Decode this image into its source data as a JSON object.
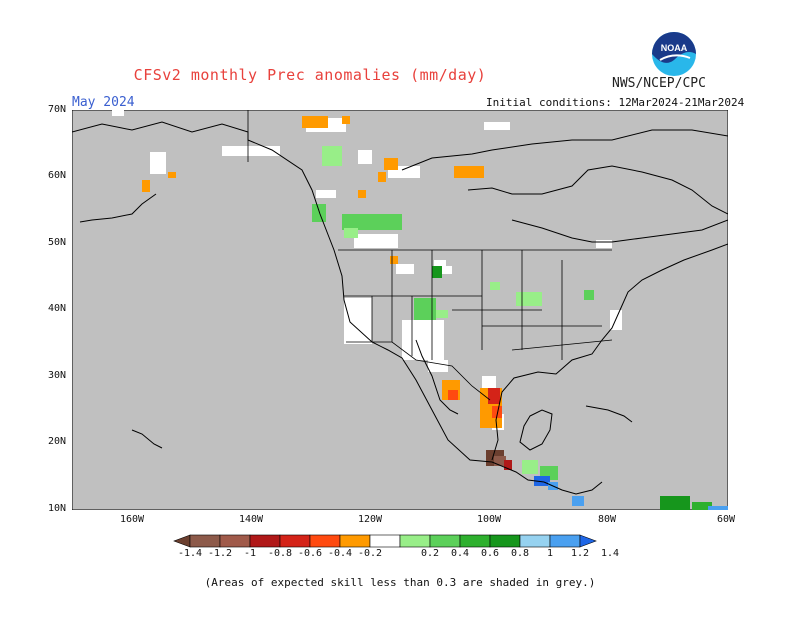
{
  "title": "CFSv2 monthly Prec anomalies (mm/day)",
  "agency": "NWS/NCEP/CPC",
  "logo_text": "NOAA",
  "month": "May 2024",
  "initial_conditions": "Initial conditions: 12Mar2024-21Mar2024",
  "note": "(Areas of expected skill less than 0.3 are shaded in grey.)",
  "lat_labels": [
    "70N",
    "60N",
    "50N",
    "40N",
    "30N",
    "20N",
    "10N"
  ],
  "lon_labels": [
    "160W",
    "140W",
    "120W",
    "100W",
    "80W",
    "60W"
  ],
  "colorbar": {
    "labels": [
      "-1.4",
      "-1.2",
      "-1",
      "-0.8",
      "-0.6",
      "-0.4",
      "-0.2",
      "0.2",
      "0.4",
      "0.6",
      "0.8",
      "1",
      "1.2",
      "1.4"
    ],
    "colors": [
      "#6b3f2f",
      "#8d5a4a",
      "#a05a4a",
      "#b01818",
      "#d42318",
      "#ff4a10",
      "#ff9a00",
      "#ffffff",
      "#98ee88",
      "#5cd05a",
      "#2eb02e",
      "#16961c",
      "#96d2f0",
      "#4aa0f0",
      "#1e66e6"
    ]
  },
  "colors": {
    "skill_mask_grey": "#c0c0c0",
    "coastline": "#000000",
    "title_red": "#e8413c",
    "month_blue": "#3a5fd0"
  }
}
